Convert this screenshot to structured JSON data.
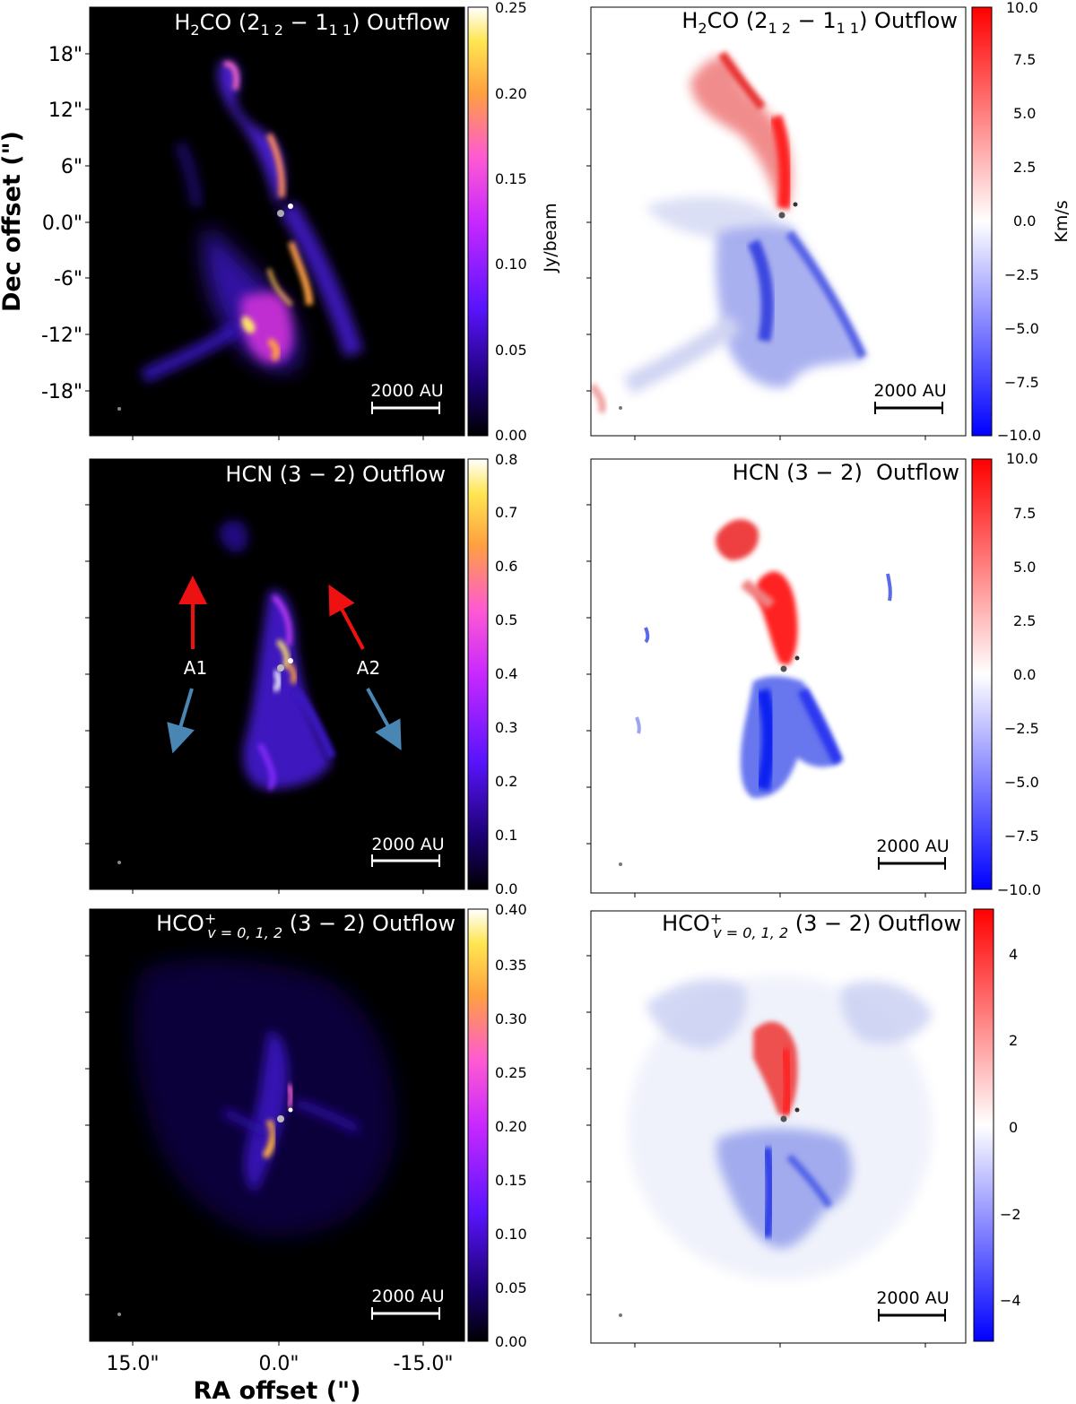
{
  "figure": {
    "x_axis_label": "RA offset (\")",
    "y_axis_label": "Dec offset (\")",
    "x_tick_labels": [
      "15.0\"",
      "0.0\"",
      "-15.0\""
    ],
    "y_tick_labels": [
      "18\"",
      "12\"",
      "6\"",
      "0.0\"",
      "-6\"",
      "-12\"",
      "-18\""
    ],
    "scale_bar_label": "2000 AU",
    "cmap_colors": {
      "intensity": [
        "#000000",
        "#1a0070",
        "#5a14ff",
        "#c828ff",
        "#ff5ad2",
        "#ffa040",
        "#ffe650",
        "#ffffff"
      ],
      "velocity": [
        "#0000ff",
        "#ffffff",
        "#ff0000"
      ]
    }
  },
  "panels": [
    {
      "id": "h2co-intensity",
      "title": {
        "main": "H",
        "sub1": "2",
        "mid": "CO (2",
        "sub2": "1 2",
        "dash": " − 1",
        "sub3": "1 1",
        "end": ") Outflow"
      },
      "colorbar": {
        "ticks": [
          "0.00",
          "0.05",
          "0.10",
          "0.15",
          "0.20",
          "0.25"
        ],
        "label": "Jy/beam"
      }
    },
    {
      "id": "h2co-velocity",
      "title": {
        "main": "H",
        "sub1": "2",
        "mid": "CO (2",
        "sub2": "1 2",
        "dash": " − 1",
        "sub3": "1 1",
        "end": ") Outflow"
      },
      "colorbar": {
        "ticks": [
          "−10.0",
          "−7.5",
          "−5.0",
          "−2.5",
          "0.0",
          "2.5",
          "5.0",
          "7.5",
          "10.0"
        ],
        "label": "Km/s"
      }
    },
    {
      "id": "hcn-intensity",
      "title": {
        "text": "HCN (3 − 2) Outflow"
      },
      "colorbar": {
        "ticks": [
          "0.0",
          "0.1",
          "0.2",
          "0.3",
          "0.4",
          "0.5",
          "0.6",
          "0.7",
          "0.8"
        ]
      },
      "annotations": [
        "A1",
        "A2"
      ]
    },
    {
      "id": "hcn-velocity",
      "title": {
        "text": "HCN (3 − 2)  Outflow"
      },
      "colorbar": {
        "ticks": [
          "−10.0",
          "−7.5",
          "−5.0",
          "−2.5",
          "0.0",
          "2.5",
          "5.0",
          "7.5",
          "10.0"
        ]
      }
    },
    {
      "id": "hco-intensity",
      "title": {
        "main": "HCO",
        "sup": "+",
        "sub": "v = 0, 1, 2",
        "end": " (3 − 2) Outflow"
      },
      "colorbar": {
        "ticks": [
          "0.00",
          "0.05",
          "0.10",
          "0.15",
          "0.20",
          "0.25",
          "0.30",
          "0.35",
          "0.40"
        ]
      }
    },
    {
      "id": "hco-velocity",
      "title": {
        "main": "HCO",
        "sup": "+",
        "sub": "v = 0, 1, 2",
        "end": " (3 − 2) Outflow"
      },
      "colorbar": {
        "ticks": [
          "−4",
          "−2",
          "0",
          "2",
          "4"
        ]
      }
    }
  ]
}
